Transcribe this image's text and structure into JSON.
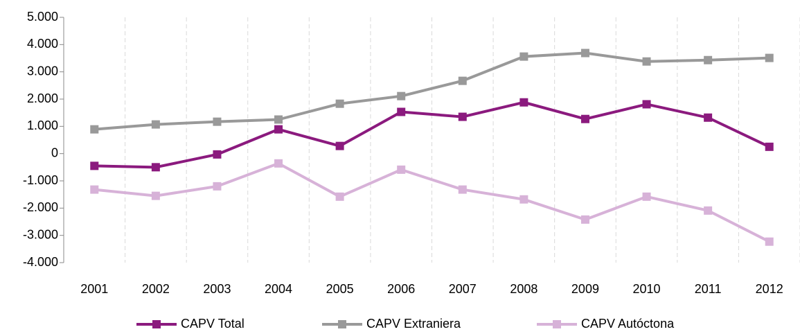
{
  "chart_data": {
    "type": "line",
    "categories": [
      "2001",
      "2002",
      "2003",
      "2004",
      "2005",
      "2006",
      "2007",
      "2008",
      "2009",
      "2010",
      "2011",
      "2012"
    ],
    "series": [
      {
        "name": "CAPV Total",
        "color": "#8b1a7e",
        "values": [
          -450,
          -500,
          -30,
          890,
          280,
          1530,
          1350,
          1880,
          1270,
          1810,
          1320,
          250
        ]
      },
      {
        "name": "CAPV Extraniera",
        "color": "#999999",
        "values": [
          890,
          1070,
          1170,
          1250,
          1830,
          2110,
          2670,
          3560,
          3690,
          3380,
          3430,
          3510
        ]
      },
      {
        "name": "CAPV Autóctona",
        "color": "#d7b2d8",
        "values": [
          -1320,
          -1550,
          -1200,
          -360,
          -1580,
          -590,
          -1320,
          -1680,
          -2420,
          -1580,
          -2090,
          -3230
        ]
      }
    ],
    "ylim": [
      -4000,
      5000
    ],
    "yticks": [
      {
        "value": -4000,
        "label": "-4.000"
      },
      {
        "value": -3000,
        "label": "-3.000"
      },
      {
        "value": -2000,
        "label": "-2.000"
      },
      {
        "value": -1000,
        "label": "-1.000"
      },
      0,
      {
        "value": 1000,
        "label": "1.000"
      },
      {
        "value": 2000,
        "label": "2.000"
      },
      {
        "value": 3000,
        "label": "3.000"
      },
      {
        "value": 4000,
        "label": "4.000"
      },
      {
        "value": 5000,
        "label": "5.000"
      }
    ],
    "x_grid": true,
    "legend": "bottom"
  }
}
